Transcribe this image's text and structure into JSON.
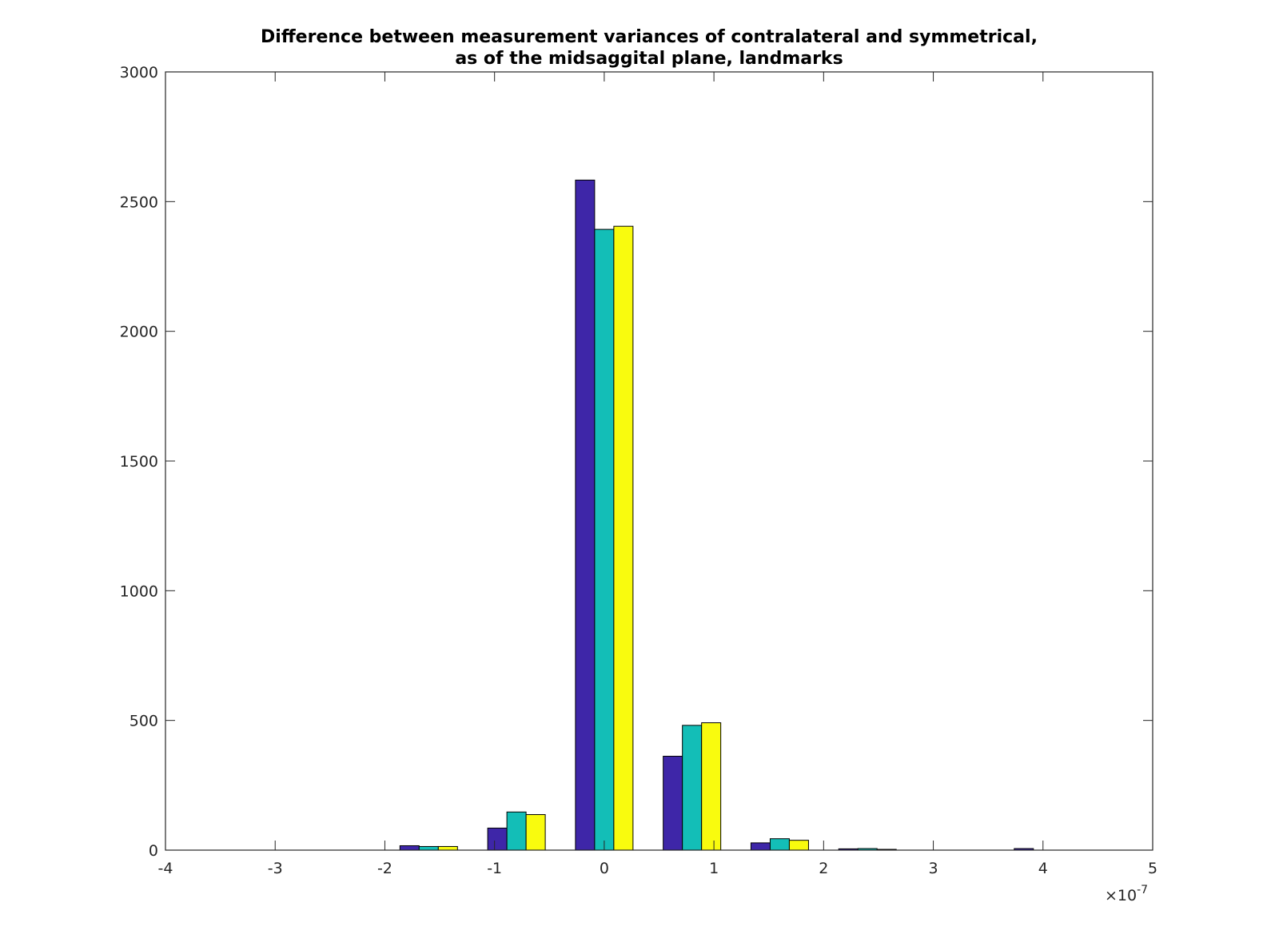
{
  "chart_data": {
    "type": "bar",
    "title_lines": [
      "Difference between measurement variances of contralateral and symmetrical,",
      "as of the midsaggital plane, landmarks"
    ],
    "xlabel": "",
    "ylabel": "",
    "x_exponent": {
      "base": "10",
      "power": "-7",
      "multiplier": "×"
    },
    "xlim": [
      -4,
      5
    ],
    "ylim": [
      0,
      3000
    ],
    "xticks": [
      -4,
      -3,
      -2,
      -1,
      0,
      1,
      2,
      3,
      4,
      5
    ],
    "yticks": [
      0,
      500,
      1000,
      1500,
      2000,
      2500,
      3000
    ],
    "grid": false,
    "bin_centers": [
      -1.6,
      -0.8,
      0.0,
      0.8,
      1.6,
      2.4,
      3.2,
      4.0
    ],
    "series": [
      {
        "color": "#3e26a8",
        "values": [
          17,
          85,
          2583,
          362,
          28,
          5,
          0,
          6
        ]
      },
      {
        "color": "#13beb7",
        "values": [
          14,
          147,
          2393,
          481,
          44,
          6,
          0,
          0
        ]
      },
      {
        "color": "#f9fb0e",
        "values": [
          14,
          137,
          2405,
          491,
          38,
          3,
          0,
          0
        ]
      }
    ]
  }
}
